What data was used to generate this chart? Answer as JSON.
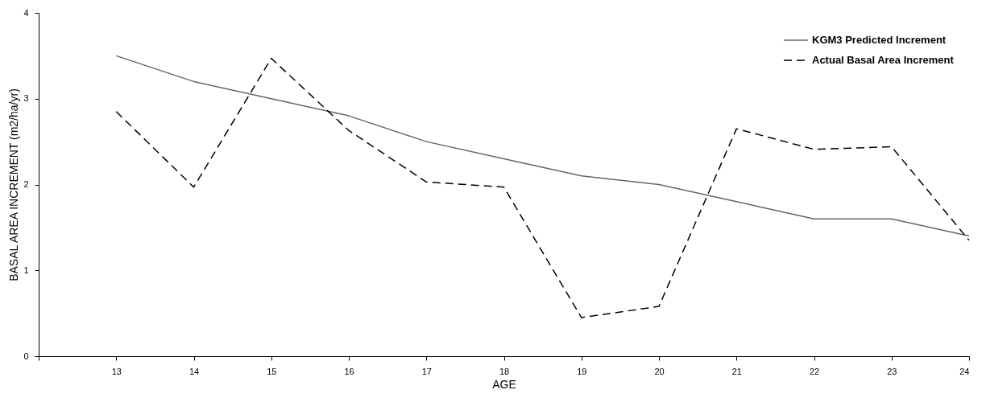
{
  "chart_data": {
    "type": "line",
    "xlabel": "AGE",
    "ylabel": "BASAL AREA INCREMENT (m2/ha/yr)",
    "x": [
      13,
      14,
      15,
      16,
      17,
      18,
      19,
      20,
      21,
      22,
      23,
      24
    ],
    "series": [
      {
        "name": "KGM3 Predicted Increment",
        "color": "#666666",
        "line_style": "solid",
        "values": [
          3.5,
          3.2,
          3.0,
          2.8,
          2.5,
          2.3,
          2.1,
          2.0,
          1.8,
          1.6,
          1.6,
          1.4
        ]
      },
      {
        "name": "Actual Basal Area Increment",
        "color": "#000000",
        "line_style": "dashed",
        "values": [
          2.85,
          1.97,
          3.47,
          2.63,
          2.03,
          1.97,
          0.45,
          0.58,
          2.65,
          2.41,
          2.44,
          1.35
        ]
      }
    ],
    "xlim": [
      12,
      24
    ],
    "xticks": [
      {
        "value": 12,
        "label": null
      },
      13,
      14,
      15,
      16,
      17,
      18,
      19,
      20,
      21,
      22,
      23,
      24
    ],
    "ylim": [
      0,
      4
    ],
    "yticks": [
      0,
      1,
      2,
      3,
      4
    ],
    "grid": false,
    "legend": "top right",
    "marker": "none"
  }
}
